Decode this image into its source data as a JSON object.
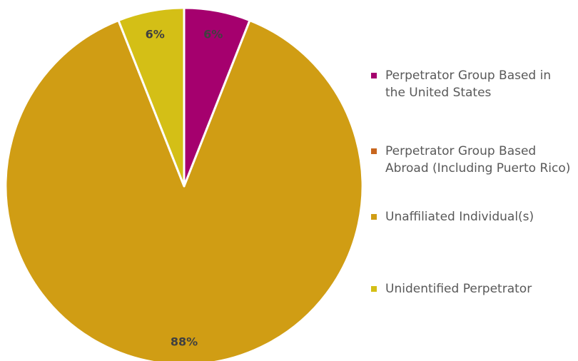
{
  "chart_data": {
    "type": "pie",
    "title": "",
    "slices": [
      {
        "name": "Perpetrator Group Based in the United States",
        "value": 6,
        "label": "6%",
        "color": "#A5006E"
      },
      {
        "name": "Perpetrator Group Based Abroad (Including Puerto Rico)",
        "value": 0,
        "label": "",
        "color": "#C8661E"
      },
      {
        "name": "Unaffiliated Individual(s)",
        "value": 88,
        "label": "88%",
        "color": "#D09D14"
      },
      {
        "name": "Unidentified Perpetrator",
        "value": 6,
        "label": "6%",
        "color": "#D4BF16"
      }
    ],
    "legend_position": "right"
  }
}
